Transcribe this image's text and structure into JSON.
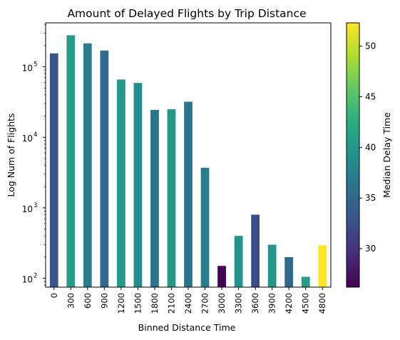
{
  "chart_data": {
    "type": "bar",
    "title": "Amount of Delayed Flights by Trip Distance",
    "xlabel": "Binned Distance Time",
    "ylabel": "Log Num of Flights",
    "yscale": "log",
    "ylim": [
      75,
      420000
    ],
    "grid": false,
    "categories": [
      "0",
      "300",
      "600",
      "900",
      "1200",
      "1500",
      "1800",
      "2100",
      "2400",
      "2700",
      "3000",
      "3300",
      "3600",
      "3900",
      "4200",
      "4500",
      "4800"
    ],
    "values": [
      155000,
      280000,
      215000,
      170000,
      66000,
      59000,
      24500,
      25000,
      32000,
      3700,
      150,
      400,
      800,
      300,
      200,
      105,
      295
    ],
    "color_values": [
      33,
      40.5,
      37.2,
      35.2,
      40.2,
      39.0,
      36.2,
      40.2,
      36.2,
      37.4,
      26.2,
      39.6,
      32.4,
      39.9,
      35.2,
      40.5,
      52.3
    ],
    "ytick_labels": [
      "10",
      "10",
      "10",
      "10"
    ],
    "ytick_exponents": [
      "2",
      "3",
      "4",
      "5"
    ],
    "ytick_values": [
      100,
      1000,
      10000,
      100000
    ],
    "colorbar": {
      "label": "Median Delay Time",
      "colormap": "viridis",
      "range": [
        26.2,
        52.3
      ],
      "ticks": [
        30,
        35,
        40,
        45,
        50
      ],
      "tick_labels": [
        "30",
        "35",
        "40",
        "45",
        "50"
      ]
    }
  }
}
